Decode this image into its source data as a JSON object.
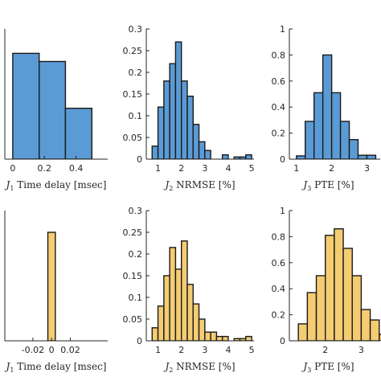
{
  "colors": {
    "blue": "#5b9bd5",
    "yellow": "#f4cc72",
    "edge": "#1a1a1a",
    "axis": "#262626"
  },
  "chart_data": [
    {
      "type": "bar",
      "histogram": true,
      "color": "blue",
      "xlim": [
        -0.05,
        0.6
      ],
      "ylim": [
        0,
        0.32
      ],
      "xticks": [
        0,
        0.2,
        0.4
      ],
      "xtick_labels": [
        "0",
        "0.2",
        "0.4"
      ],
      "yticks": [],
      "ytick_labels": [],
      "xlabel": {
        "sym": "J",
        "sub": "1",
        "text": " Time delay [msec]"
      },
      "bins": [
        [
          0,
          0.167,
          0.26
        ],
        [
          0.167,
          0.333,
          0.24
        ],
        [
          0.333,
          0.5,
          0.125
        ]
      ]
    },
    {
      "type": "bar",
      "histogram": true,
      "color": "blue",
      "xlim": [
        0.5,
        5.1
      ],
      "ylim": [
        0,
        0.3
      ],
      "xticks": [
        1,
        2,
        3,
        4,
        5
      ],
      "xtick_labels": [
        "1",
        "2",
        "3",
        "4",
        "5"
      ],
      "yticks": [
        0,
        0.05,
        0.1,
        0.15,
        0.2,
        0.25,
        0.3
      ],
      "ytick_labels": [
        "0",
        "0.05",
        "0.1",
        "0.15",
        "0.2",
        "0.25",
        "0.3"
      ],
      "xlabel": {
        "sym": "J",
        "sub": "2",
        "text": " NRMSE [%]"
      },
      "bins": [
        [
          0.75,
          1.0,
          0.03
        ],
        [
          1.0,
          1.25,
          0.12
        ],
        [
          1.25,
          1.5,
          0.18
        ],
        [
          1.5,
          1.75,
          0.22
        ],
        [
          1.75,
          2.0,
          0.27
        ],
        [
          2.0,
          2.25,
          0.18
        ],
        [
          2.25,
          2.5,
          0.145
        ],
        [
          2.5,
          2.75,
          0.08
        ],
        [
          2.75,
          3.0,
          0.04
        ],
        [
          3.0,
          3.25,
          0.02
        ],
        [
          3.25,
          3.5,
          0.0
        ],
        [
          3.5,
          3.75,
          0.0
        ],
        [
          3.75,
          4.0,
          0.01
        ],
        [
          4.0,
          4.25,
          0.0
        ],
        [
          4.25,
          4.5,
          0.005
        ],
        [
          4.5,
          4.75,
          0.005
        ],
        [
          4.75,
          5.0,
          0.01
        ]
      ]
    },
    {
      "type": "bar",
      "histogram": true,
      "color": "blue",
      "xlim": [
        0.8,
        3.4
      ],
      "ylim": [
        0,
        1
      ],
      "xticks": [
        1,
        2,
        3
      ],
      "xtick_labels": [
        "1",
        "2",
        "3"
      ],
      "yticks": [
        0,
        0.2,
        0.4,
        0.6,
        0.8,
        1
      ],
      "ytick_labels": [
        "0",
        "0.2",
        "0.4",
        "0.6",
        "0.8",
        "1"
      ],
      "xlabel": {
        "sym": "J",
        "sub": "3",
        "text": " PTE [%]"
      },
      "bins": [
        [
          1.0,
          1.25,
          0.025
        ],
        [
          1.25,
          1.5,
          0.29
        ],
        [
          1.5,
          1.75,
          0.51
        ],
        [
          1.75,
          2.0,
          0.8
        ],
        [
          2.0,
          2.25,
          0.51
        ],
        [
          2.25,
          2.5,
          0.29
        ],
        [
          2.5,
          2.75,
          0.15
        ],
        [
          2.75,
          3.0,
          0.03
        ],
        [
          3.0,
          3.25,
          0.03
        ]
      ]
    },
    {
      "type": "bar",
      "histogram": true,
      "color": "yellow",
      "xlim": [
        -0.05,
        0.06
      ],
      "ylim": [
        0,
        1.2
      ],
      "xticks": [
        -0.02,
        0,
        0.02
      ],
      "xtick_labels": [
        "-0.02",
        "0",
        "0.02"
      ],
      "yticks": [],
      "ytick_labels": [],
      "xlabel": {
        "sym": "J",
        "sub": "1",
        "text": " Time delay [msec]"
      },
      "bins": [
        [
          -0.004,
          0.004,
          1.0
        ]
      ]
    },
    {
      "type": "bar",
      "histogram": true,
      "color": "yellow",
      "xlim": [
        0.5,
        5.1
      ],
      "ylim": [
        0,
        0.3
      ],
      "xticks": [
        1,
        2,
        3,
        4,
        5
      ],
      "xtick_labels": [
        "1",
        "2",
        "3",
        "4",
        "5"
      ],
      "yticks": [
        0,
        0.05,
        0.1,
        0.15,
        0.2,
        0.25,
        0.3
      ],
      "ytick_labels": [
        "0",
        "0.05",
        "0.1",
        "0.15",
        "0.2",
        "0.25",
        "0.3"
      ],
      "xlabel": {
        "sym": "J",
        "sub": "2",
        "text": " NRMSE [%]"
      },
      "bins": [
        [
          0.75,
          1.0,
          0.03
        ],
        [
          1.0,
          1.25,
          0.08
        ],
        [
          1.25,
          1.5,
          0.15
        ],
        [
          1.5,
          1.75,
          0.215
        ],
        [
          1.75,
          2.0,
          0.165
        ],
        [
          2.0,
          2.25,
          0.23
        ],
        [
          2.25,
          2.5,
          0.13
        ],
        [
          2.5,
          2.75,
          0.085
        ],
        [
          2.75,
          3.0,
          0.05
        ],
        [
          3.0,
          3.25,
          0.02
        ],
        [
          3.25,
          3.5,
          0.02
        ],
        [
          3.5,
          3.75,
          0.01
        ],
        [
          3.75,
          4.0,
          0.01
        ],
        [
          4.0,
          4.25,
          0.0
        ],
        [
          4.25,
          4.5,
          0.005
        ],
        [
          4.5,
          4.75,
          0.005
        ],
        [
          4.75,
          5.0,
          0.01
        ]
      ]
    },
    {
      "type": "bar",
      "histogram": true,
      "color": "yellow",
      "xlim": [
        1.0,
        3.55
      ],
      "ylim": [
        0,
        1
      ],
      "xticks": [
        2,
        3
      ],
      "xtick_labels": [
        "2",
        "3"
      ],
      "yticks": [
        0,
        0.2,
        0.4,
        0.6,
        0.8,
        1
      ],
      "ytick_labels": [
        "0",
        "0.2",
        "0.4",
        "0.6",
        "0.8",
        "1"
      ],
      "xlabel": {
        "sym": "J",
        "sub": "3",
        "text": " PTE [%]"
      },
      "bins": [
        [
          1.25,
          1.5,
          0.13
        ],
        [
          1.5,
          1.75,
          0.37
        ],
        [
          1.75,
          2.0,
          0.5
        ],
        [
          2.0,
          2.25,
          0.81
        ],
        [
          2.25,
          2.5,
          0.86
        ],
        [
          2.5,
          2.75,
          0.71
        ],
        [
          2.75,
          3.0,
          0.5
        ],
        [
          3.0,
          3.25,
          0.24
        ],
        [
          3.25,
          3.5,
          0.16
        ],
        [
          3.5,
          3.75,
          0.05
        ]
      ]
    }
  ]
}
